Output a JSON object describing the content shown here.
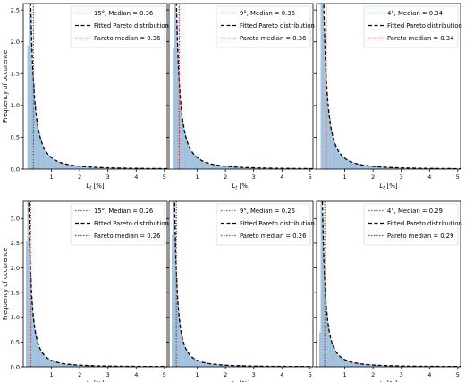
{
  "figure": {
    "shared_ylabel": "Frequency of occurence",
    "colors": {
      "hist": "#a9c6e0",
      "hist_edge": "#8fb3d3",
      "median_line": "#2ca02c",
      "pareto_median_line": "#d62728",
      "fit_line": "#000000"
    }
  },
  "chart_data": [
    {
      "type": "area",
      "row": 0,
      "col": 0,
      "xlabel": "L_t [%]",
      "ylabel": "Frequency of occurence",
      "xlim": [
        0,
        5.1
      ],
      "ylim": [
        0,
        2.6
      ],
      "xticks": [
        1,
        2,
        3,
        4,
        5
      ],
      "yticks": [
        0.0,
        0.5,
        1.0,
        1.5,
        2.0,
        2.5
      ],
      "median": 0.36,
      "pareto_median": 0.36,
      "fit_scale": 0.18,
      "legend": [
        "15°, Median = 0.36",
        "Fitted Pareto distribution",
        "Pareto median = 0.36"
      ],
      "legend_position": "top-right"
    },
    {
      "type": "area",
      "row": 0,
      "col": 1,
      "xlabel": "L_t [%]",
      "xlim": [
        0,
        5.1
      ],
      "ylim": [
        0,
        2.6
      ],
      "xticks": [
        1,
        2,
        3,
        4,
        5
      ],
      "median": 0.36,
      "pareto_median": 0.36,
      "fit_scale": 0.18,
      "legend": [
        "9°, Median = 0.36",
        "Fitted Pareto distribution",
        "Pareto median = 0.36"
      ],
      "legend_position": "top-right"
    },
    {
      "type": "area",
      "row": 0,
      "col": 2,
      "xlabel": "L_t [%]",
      "xlim": [
        0,
        5.1
      ],
      "ylim": [
        0,
        2.6
      ],
      "xticks": [
        1,
        2,
        3,
        4,
        5
      ],
      "median": 0.34,
      "pareto_median": 0.34,
      "fit_scale": 0.17,
      "legend": [
        "4°, Median = 0.34",
        "Fitted Pareto distribution",
        "Pareto median = 0.34"
      ],
      "legend_position": "top-right"
    },
    {
      "type": "area",
      "row": 1,
      "col": 0,
      "xlabel": "L_t [%]",
      "ylabel": "Frequency of occurence",
      "xlim": [
        0,
        5.1
      ],
      "ylim": [
        0,
        3.35
      ],
      "xticks": [
        1,
        2,
        3,
        4,
        5
      ],
      "yticks": [
        0.0,
        0.5,
        1.0,
        1.5,
        2.0,
        2.5,
        3.0
      ],
      "median": 0.26,
      "pareto_median": 0.26,
      "fit_scale": 0.13,
      "legend": [
        "15°, Median = 0.26",
        "Fitted Pareto distribution",
        "Pareto median = 0.26"
      ],
      "legend_position": "top-right"
    },
    {
      "type": "area",
      "row": 1,
      "col": 1,
      "xlabel": "L_t [%]",
      "xlim": [
        0,
        5.1
      ],
      "ylim": [
        0,
        3.35
      ],
      "xticks": [
        1,
        2,
        3,
        4,
        5
      ],
      "median": 0.26,
      "pareto_median": 0.26,
      "fit_scale": 0.13,
      "legend": [
        "9°, Median = 0.26",
        "Fitted Pareto distribution",
        "Pareto median = 0.26"
      ],
      "legend_position": "top-right"
    },
    {
      "type": "area",
      "row": 1,
      "col": 2,
      "xlabel": "L_t [%]",
      "xlim": [
        0,
        5.1
      ],
      "ylim": [
        0,
        3.35
      ],
      "xticks": [
        1,
        2,
        3,
        4,
        5
      ],
      "median": 0.29,
      "pareto_median": 0.29,
      "fit_scale": 0.145,
      "legend": [
        "4°, Median = 0.29",
        "Fitted Pareto distribution",
        "Pareto median = 0.29"
      ],
      "legend_position": "top-right"
    }
  ]
}
